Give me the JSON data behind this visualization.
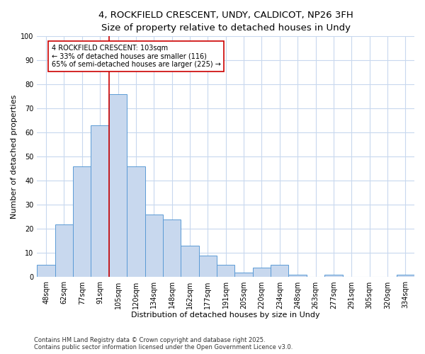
{
  "title_line1": "4, ROCKFIELD CRESCENT, UNDY, CALDICOT, NP26 3FH",
  "title_line2": "Size of property relative to detached houses in Undy",
  "xlabel": "Distribution of detached houses by size in Undy",
  "ylabel": "Number of detached properties",
  "categories": [
    "48sqm",
    "62sqm",
    "77sqm",
    "91sqm",
    "105sqm",
    "120sqm",
    "134sqm",
    "148sqm",
    "162sqm",
    "177sqm",
    "191sqm",
    "205sqm",
    "220sqm",
    "234sqm",
    "248sqm",
    "263sqm",
    "277sqm",
    "291sqm",
    "305sqm",
    "320sqm",
    "334sqm"
  ],
  "values": [
    5,
    22,
    46,
    63,
    76,
    46,
    26,
    24,
    13,
    9,
    5,
    2,
    4,
    5,
    1,
    0,
    1,
    0,
    0,
    0,
    1
  ],
  "bar_color": "#c8d8ee",
  "bar_edge_color": "#5b9bd5",
  "vline_color": "#cc0000",
  "annotation_text": "4 ROCKFIELD CRESCENT: 103sqm\n← 33% of detached houses are smaller (116)\n65% of semi-detached houses are larger (225) →",
  "annotation_box_color": "#ffffff",
  "annotation_box_edge": "#cc0000",
  "annotation_fontsize": 7.0,
  "footer_line1": "Contains HM Land Registry data © Crown copyright and database right 2025.",
  "footer_line2": "Contains public sector information licensed under the Open Government Licence v3.0.",
  "ylim": [
    0,
    100
  ],
  "yticks": [
    0,
    10,
    20,
    30,
    40,
    50,
    60,
    70,
    80,
    90,
    100
  ],
  "bg_color": "#ffffff",
  "grid_color": "#c8d8ee",
  "title_fontsize": 9.5,
  "subtitle_fontsize": 8.5,
  "axis_label_fontsize": 8.0,
  "tick_fontsize": 7.0,
  "footer_fontsize": 6.0,
  "vline_x": 4.0
}
